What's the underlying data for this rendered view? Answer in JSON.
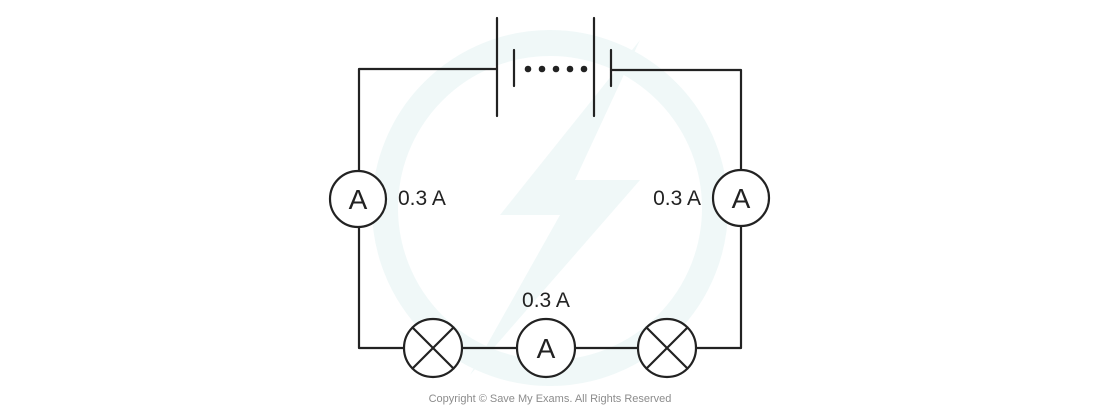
{
  "diagram": {
    "type": "series circuit",
    "components": {
      "battery": "battery-icon",
      "ammeter_symbol": "A",
      "lamp": "lamp-icon"
    },
    "readings": {
      "left_ammeter": "0.3 A",
      "right_ammeter": "0.3 A",
      "bottom_ammeter": "0.3 A"
    },
    "copyright": "Copyright © Save My Exams. All Rights Reserved"
  },
  "colors": {
    "line": "#222222",
    "watermark": "#e4f3f3",
    "copyright": "#8c8c8c"
  }
}
